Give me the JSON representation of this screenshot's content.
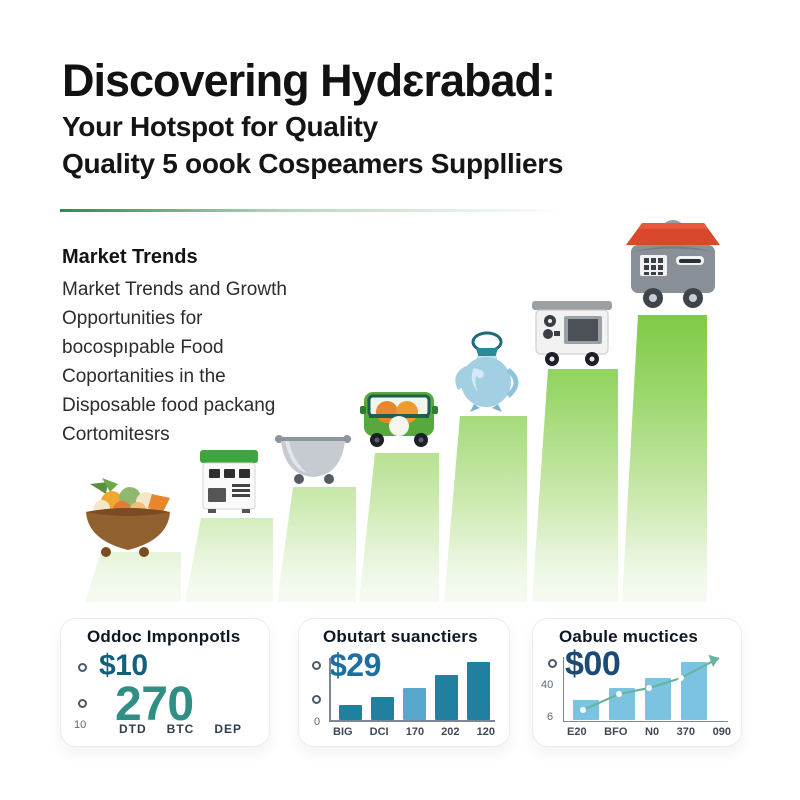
{
  "header": {
    "title": "Discovering Hydɛrabad:",
    "subtitle_line1": "Your Hotspot for Quality",
    "subtitle_line2": "Quality 5 oook Cospeamers Supplliers"
  },
  "market": {
    "heading": "Market Trends",
    "lines": [
      "Market Trends and Growth",
      "Opportunities for",
      "bocospıpable Food",
      "Coportanities in the",
      "Disposable food packang",
      "Cortomitesrs"
    ]
  },
  "colors": {
    "accent_green": "#2e8c49",
    "stair_green_top": "#7ecb46",
    "stat_teal_dark": "#14607c",
    "stat_teal": "#2f8f85",
    "stat_blue": "#1a6fa3",
    "stat_navy": "#1b4a75",
    "bar_blue": "#20809f",
    "bar_blue_light": "#57a8cc",
    "bar_sky": "#7cc3e2",
    "trend_line": "#68b49e"
  },
  "cards": [
    {
      "title": "Oddoc Imponpotls",
      "stat1": "$10",
      "stat2": "270",
      "side_label": "10",
      "footer": [
        "DTD",
        "BTC",
        "DEP"
      ]
    },
    {
      "title": "Obutart suanctiers",
      "stat": "$29",
      "axis_zero": "0"
    },
    {
      "title": "Oabule muctices",
      "stat": "$00",
      "yticks": [
        "40",
        "6"
      ]
    }
  ],
  "chart_data": [
    {
      "id": "growth-staircase",
      "type": "bar",
      "title": "Market growth staircase with product icons",
      "categories": [
        "fruit-bowl",
        "kitchen-machine",
        "cooking-pot",
        "food-truck",
        "teapot",
        "microwave",
        "storage-container"
      ],
      "values": [
        50,
        84,
        115,
        149,
        186,
        233,
        287
      ],
      "xlabel": "",
      "ylabel": "",
      "legend": "none",
      "grid": false
    },
    {
      "id": "card2-mini-bars",
      "type": "bar",
      "categories": [
        "BIG",
        "DCI",
        "170",
        "202",
        "120"
      ],
      "values": [
        15,
        23,
        32,
        45,
        58
      ],
      "highlight_index": 2,
      "colors": {
        "bar": "#20809f",
        "highlight": "#57a8cc"
      },
      "ylim": [
        0,
        60
      ],
      "grid": false
    },
    {
      "id": "card3-mini-bars",
      "type": "bar+line",
      "categories": [
        "E20",
        "BFO",
        "N0",
        "370",
        "090"
      ],
      "values": [
        20,
        32,
        42,
        58,
        0
      ],
      "yticks": [
        "40",
        "6"
      ],
      "line_note": "upward trend line with arrow and white point markers",
      "colors": {
        "bar": "#7cc3e2",
        "highlight": "#7cc3e2",
        "line": "#68b49e"
      },
      "ylim": [
        0,
        62
      ],
      "grid": false
    }
  ]
}
